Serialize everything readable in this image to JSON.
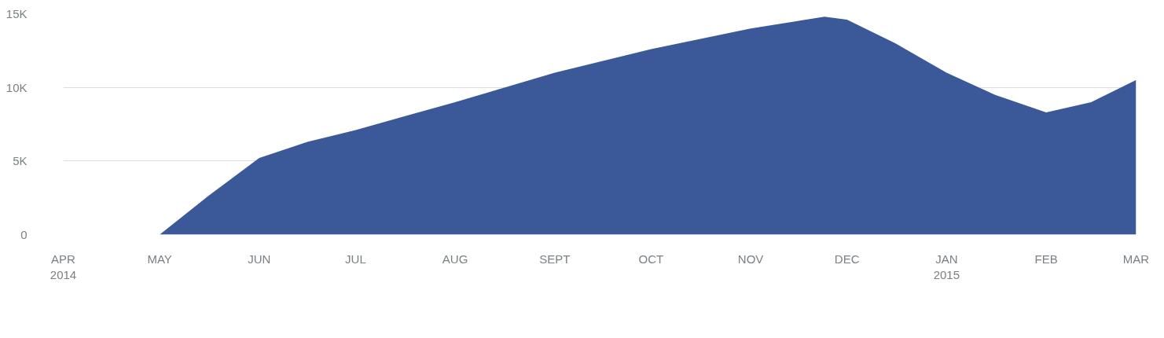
{
  "chart_data": {
    "type": "area",
    "x": [
      "2014-04-01",
      "2014-05-01",
      "2014-05-16",
      "2014-06-01",
      "2014-06-16",
      "2014-07-01",
      "2014-08-01",
      "2014-09-01",
      "2014-10-01",
      "2014-11-01",
      "2014-11-24",
      "2014-12-01",
      "2014-12-16",
      "2015-01-01",
      "2015-01-16",
      "2015-02-01",
      "2015-02-15",
      "2015-03-01"
    ],
    "series": [
      {
        "color": "#3b5998",
        "values": [
          0,
          0,
          2.6,
          5.2,
          6.3,
          7.1,
          9.0,
          11.0,
          12.6,
          14.0,
          14.8,
          14.6,
          13.0,
          11.0,
          9.5,
          8.3,
          9.0,
          10.5
        ]
      }
    ],
    "xlim": [
      "2014-04-01",
      "2015-03-01"
    ],
    "xticks": [
      {
        "value": "2014-04-01",
        "label": "APR\n2014"
      },
      {
        "value": "2014-05-01",
        "label": "MAY"
      },
      {
        "value": "2014-06-01",
        "label": "JUN"
      },
      {
        "value": "2014-07-01",
        "label": "JUL"
      },
      {
        "value": "2014-08-01",
        "label": "AUG"
      },
      {
        "value": "2014-09-01",
        "label": "SEPT"
      },
      {
        "value": "2014-10-01",
        "label": "OCT"
      },
      {
        "value": "2014-11-01",
        "label": "NOV"
      },
      {
        "value": "2014-12-01",
        "label": "DEC"
      },
      {
        "value": "2015-01-01",
        "label": "JAN\n2015"
      },
      {
        "value": "2015-02-01",
        "label": "FEB"
      },
      {
        "value": "2015-03-01",
        "label": "MAR"
      }
    ],
    "ylim": [
      0,
      15
    ],
    "yticks": [
      {
        "value": 0,
        "label": "0"
      },
      {
        "value": 5,
        "label": "5K"
      },
      {
        "value": 10,
        "label": "10K"
      },
      {
        "value": 15,
        "label": "15K"
      }
    ],
    "grid": "y"
  }
}
